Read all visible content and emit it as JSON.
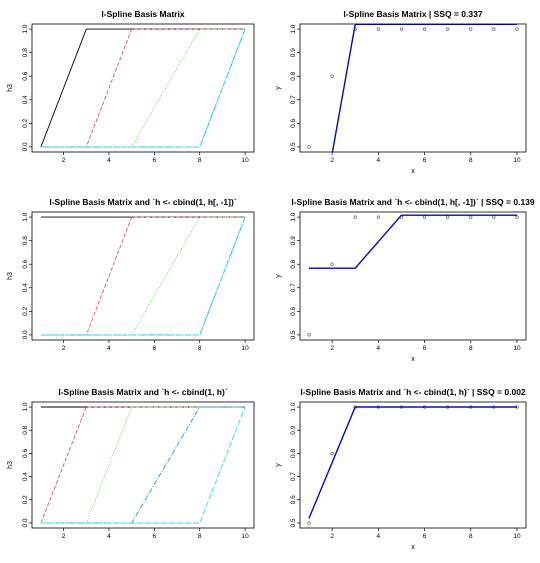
{
  "chart_data": [
    {
      "type": "line",
      "title": "I-Spline Basis Matrix",
      "xlabel": "",
      "ylabel": "h3",
      "xlim": [
        1,
        10
      ],
      "ylim": [
        0,
        1
      ],
      "xticks": [
        "2",
        "4",
        "6",
        "8",
        "10"
      ],
      "yticks": [
        "0.0",
        "0.2",
        "0.4",
        "0.6",
        "0.8",
        "1.0"
      ],
      "series": [
        {
          "color": "#000000",
          "dash": "",
          "x": [
            1,
            3,
            5,
            10
          ],
          "y": [
            0,
            1,
            1,
            1
          ]
        },
        {
          "color": "#df536b",
          "dash": "4,2",
          "x": [
            1,
            3,
            5,
            10
          ],
          "y": [
            0,
            0,
            1,
            1
          ]
        },
        {
          "color": "#61d04f",
          "dash": "1,1.5",
          "x": [
            1,
            5,
            8,
            10
          ],
          "y": [
            0,
            0,
            1,
            1
          ]
        },
        {
          "color": "#2297e6",
          "dash": "5,1.5,1,1.5",
          "x": [
            1,
            8,
            10
          ],
          "y": [
            0,
            0,
            1
          ]
        },
        {
          "color": "#28e2e5",
          "dash": "6,2",
          "x": [
            1,
            8,
            10
          ],
          "y": [
            0,
            0,
            1
          ]
        }
      ]
    },
    {
      "type": "scatter",
      "title": "I-Spline Basis Matrix | SSQ = 0.337",
      "xlabel": "x",
      "ylabel": "y",
      "xlim": [
        1,
        10
      ],
      "ylim": [
        0.5,
        1
      ],
      "xticks": [
        "2",
        "4",
        "6",
        "8",
        "10"
      ],
      "yticks": [
        "0.5",
        "0.6",
        "0.7",
        "0.8",
        "0.9",
        "1.0"
      ],
      "points_x": [
        1,
        2,
        3,
        4,
        5,
        6,
        7,
        8,
        9,
        10
      ],
      "points_y": [
        0.5,
        0.8,
        1,
        1,
        1,
        1,
        1,
        1,
        1,
        1
      ],
      "fit": [
        {
          "color": "#000000",
          "width": 1.2,
          "x": [
            2,
            3,
            10
          ],
          "y": [
            0.47,
            1.02,
            1.02
          ]
        },
        {
          "color": "#0000ff",
          "width": 1.2,
          "x": [
            2,
            3,
            10
          ],
          "y": [
            0.47,
            1.02,
            1.02
          ]
        }
      ]
    },
    {
      "type": "line",
      "title": "I-Spline Basis Matrix and `h <- cbind(1, h[, -1])`",
      "xlabel": "",
      "ylabel": "h3",
      "xlim": [
        1,
        10
      ],
      "ylim": [
        0,
        1
      ],
      "xticks": [
        "2",
        "4",
        "6",
        "8",
        "10"
      ],
      "yticks": [
        "0.0",
        "0.2",
        "0.4",
        "0.6",
        "0.8",
        "1.0"
      ],
      "series": [
        {
          "color": "#000000",
          "dash": "",
          "x": [
            1,
            10
          ],
          "y": [
            1,
            1
          ]
        },
        {
          "color": "#df536b",
          "dash": "4,2",
          "x": [
            1,
            3,
            5,
            10
          ],
          "y": [
            0,
            0,
            1,
            1
          ]
        },
        {
          "color": "#61d04f",
          "dash": "1,1.5",
          "x": [
            1,
            5,
            8,
            10
          ],
          "y": [
            0,
            0,
            1,
            1
          ]
        },
        {
          "color": "#2297e6",
          "dash": "5,1.5,1,1.5",
          "x": [
            1,
            8,
            10
          ],
          "y": [
            0,
            0,
            1
          ]
        },
        {
          "color": "#28e2e5",
          "dash": "6,2",
          "x": [
            1,
            8,
            10
          ],
          "y": [
            0,
            0,
            1
          ]
        }
      ]
    },
    {
      "type": "scatter",
      "title": "I-Spline Basis Matrix and `h <- cbind(1, h[, -1])` | SSQ = 0.139",
      "xlabel": "x",
      "ylabel": "y",
      "xlim": [
        1,
        10
      ],
      "ylim": [
        0.5,
        1
      ],
      "xticks": [
        "2",
        "4",
        "6",
        "8",
        "10"
      ],
      "yticks": [
        "0.5",
        "0.6",
        "0.7",
        "0.8",
        "0.9",
        "1.0"
      ],
      "points_x": [
        1,
        2,
        3,
        4,
        5,
        6,
        7,
        8,
        9,
        10
      ],
      "points_y": [
        0.5,
        0.8,
        1,
        1,
        1,
        1,
        1,
        1,
        1,
        1
      ],
      "fit": [
        {
          "color": "#000000",
          "width": 1.2,
          "x": [
            1,
            3,
            5,
            10
          ],
          "y": [
            0.783,
            0.783,
            1.008,
            1.008
          ]
        },
        {
          "color": "#0000ff",
          "width": 1.2,
          "x": [
            1,
            3,
            5,
            10
          ],
          "y": [
            0.783,
            0.783,
            1.008,
            1.008
          ]
        }
      ]
    },
    {
      "type": "line",
      "title": "I-Spline Basis Matrix and `h <- cbind(1, h)`",
      "xlabel": "",
      "ylabel": "h3",
      "xlim": [
        1,
        10
      ],
      "ylim": [
        0,
        1
      ],
      "xticks": [
        "2",
        "4",
        "6",
        "8",
        "10"
      ],
      "yticks": [
        "0.0",
        "0.2",
        "0.4",
        "0.6",
        "0.8",
        "1.0"
      ],
      "series": [
        {
          "color": "#000000",
          "dash": "",
          "x": [
            1,
            10
          ],
          "y": [
            1,
            1
          ]
        },
        {
          "color": "#df536b",
          "dash": "4,2",
          "x": [
            1,
            3,
            5,
            10
          ],
          "y": [
            0,
            1,
            1,
            1
          ]
        },
        {
          "color": "#61d04f",
          "dash": "1,1.5",
          "x": [
            1,
            3,
            5,
            10
          ],
          "y": [
            0,
            0,
            1,
            1
          ]
        },
        {
          "color": "#2297e6",
          "dash": "5,1.5,1,1.5",
          "x": [
            1,
            5,
            8,
            10
          ],
          "y": [
            0,
            0,
            1,
            1
          ]
        },
        {
          "color": "#28e2e5",
          "dash": "6,2",
          "x": [
            1,
            8,
            10
          ],
          "y": [
            0,
            0,
            1
          ]
        }
      ]
    },
    {
      "type": "scatter",
      "title": "I-Spline Basis Matrix and `h <- cbind(1, h)` | SSQ = 0.002",
      "xlabel": "x",
      "ylabel": "y",
      "xlim": [
        1,
        10
      ],
      "ylim": [
        0.5,
        1
      ],
      "xticks": [
        "2",
        "4",
        "6",
        "8",
        "10"
      ],
      "yticks": [
        "0.5",
        "0.6",
        "0.7",
        "0.8",
        "0.9",
        "1.0"
      ],
      "points_x": [
        1,
        2,
        3,
        4,
        5,
        6,
        7,
        8,
        9,
        10
      ],
      "points_y": [
        0.5,
        0.8,
        1,
        1,
        1,
        1,
        1,
        1,
        1,
        1
      ],
      "fit": [
        {
          "color": "#000000",
          "width": 1.2,
          "x": [
            1,
            3,
            10
          ],
          "y": [
            0.52,
            1.0,
            1.0
          ]
        },
        {
          "color": "#0000ff",
          "width": 1.2,
          "x": [
            1,
            3,
            10
          ],
          "y": [
            0.52,
            1.0,
            1.0
          ]
        }
      ]
    }
  ]
}
